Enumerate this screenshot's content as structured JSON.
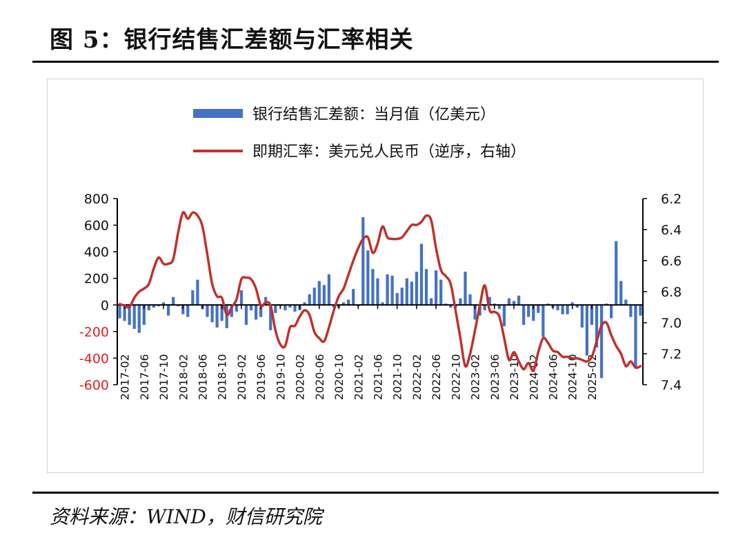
{
  "header": {
    "title": "图 5：银行结售汇差额与汇率相关"
  },
  "footer": {
    "source": "资料来源：WIND，财信研究院"
  },
  "chart_data": {
    "type": "bar+line",
    "legend": [
      {
        "name": "银行结售汇差额：当月值（亿美元）",
        "kind": "bar",
        "color": "#4472C4"
      },
      {
        "name": "即期汇率：美元兑人民币（逆序，右轴）",
        "kind": "line",
        "color": "#C0302B"
      }
    ],
    "colors": {
      "bar": "#4472C4",
      "line": "#C0302B",
      "negative_tick": "#E02020"
    },
    "left_axis": {
      "min": -600,
      "max": 800,
      "ticks": [
        800,
        600,
        400,
        200,
        0,
        -200,
        -400,
        -600
      ]
    },
    "right_axis": {
      "min": 6.2,
      "max": 7.4,
      "inverted": true,
      "ticks": [
        "6.2",
        "6.4",
        "6.6",
        "6.8",
        "7.0",
        "7.2",
        "7.4"
      ]
    },
    "x_ticks": [
      "2017-02",
      "2017-06",
      "2017-10",
      "2018-02",
      "2018-06",
      "2018-10",
      "2019-02",
      "2019-06",
      "2019-10",
      "2020-02",
      "2020-06",
      "2020-10",
      "2021-02",
      "2021-06",
      "2021-10",
      "2022-02",
      "2022-06",
      "2022-10",
      "2023-02",
      "2023-06",
      "2023-10",
      "2024-02",
      "2024-06",
      "2024-10",
      "2025-02"
    ],
    "x_start": "2017-01",
    "bars": [
      -100,
      -120,
      -150,
      -180,
      -210,
      -150,
      -40,
      -20,
      -10,
      20,
      -80,
      60,
      -10,
      -70,
      -90,
      110,
      190,
      -30,
      -90,
      -130,
      -170,
      -120,
      -175,
      -90,
      -50,
      110,
      -150,
      -40,
      -110,
      -90,
      60,
      -190,
      -60,
      -10,
      -40,
      -20,
      -50,
      -40,
      20,
      80,
      130,
      180,
      150,
      230,
      -20,
      -20,
      20,
      40,
      120,
      -10,
      660,
      410,
      270,
      200,
      20,
      230,
      220,
      90,
      130,
      200,
      175,
      250,
      460,
      270,
      50,
      260,
      190,
      10,
      -20,
      -20,
      50,
      250,
      80,
      -110,
      -80,
      -40,
      60,
      10,
      -30,
      -160,
      50,
      30,
      70,
      -150,
      -90,
      -120,
      -60,
      -240,
      10,
      -20,
      -40,
      -70,
      -70,
      20,
      -20,
      -170,
      -380,
      -150,
      -320,
      -550,
      10,
      -100,
      480,
      180,
      40,
      -90,
      -470,
      -80
    ],
    "rate": [
      6.88,
      6.89,
      6.9,
      6.84,
      6.8,
      6.78,
      6.75,
      6.65,
      6.58,
      6.62,
      6.62,
      6.59,
      6.42,
      6.29,
      6.33,
      6.29,
      6.31,
      6.38,
      6.56,
      6.75,
      6.83,
      6.84,
      6.95,
      6.9,
      6.85,
      6.72,
      6.71,
      6.72,
      6.78,
      6.89,
      6.87,
      6.89,
      7.05,
      7.14,
      7.15,
      7.03,
      7.02,
      6.96,
      6.92,
      6.95,
      7.06,
      7.1,
      7.12,
      7.03,
      6.92,
      6.83,
      6.78,
      6.69,
      6.6,
      6.52,
      6.46,
      6.45,
      6.55,
      6.49,
      6.38,
      6.45,
      6.46,
      6.46,
      6.45,
      6.41,
      6.37,
      6.37,
      6.35,
      6.31,
      6.34,
      6.52,
      6.66,
      6.7,
      6.75,
      6.92,
      7.1,
      7.28,
      7.2,
      7.05,
      6.89,
      6.76,
      6.92,
      6.93,
      6.96,
      7.1,
      7.24,
      7.19,
      7.25,
      7.3,
      7.26,
      7.31,
      7.19,
      7.1,
      7.13,
      7.18,
      7.19,
      7.22,
      7.22,
      7.23,
      7.23,
      7.24,
      7.25,
      7.22,
      7.12,
      7.02,
      7.0,
      7.08,
      7.15,
      7.2,
      7.28,
      7.25,
      7.29,
      7.28
    ]
  }
}
